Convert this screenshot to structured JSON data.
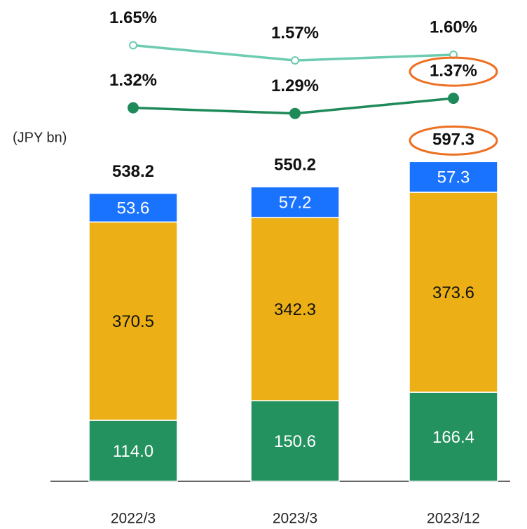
{
  "chart_data": {
    "type": "bar",
    "stacked": true,
    "unit_label": "(JPY bn)",
    "categories": [
      "2022/3",
      "2023/3",
      "2023/12"
    ],
    "ylim": [
      0,
      620
    ],
    "y2lim": [
      1.2,
      1.7
    ],
    "series": [
      {
        "type": "bar",
        "color": "#23925e",
        "values": [
          114.0,
          150.6,
          166.4
        ],
        "value_labels": [
          "114.0",
          "150.6",
          "166.4"
        ]
      },
      {
        "type": "bar",
        "color": "#ecb016",
        "values": [
          370.5,
          342.3,
          373.6
        ],
        "value_labels": [
          "370.5",
          "342.3",
          "373.6"
        ]
      },
      {
        "type": "bar",
        "color": "#1a73ff",
        "values": [
          53.6,
          57.2,
          57.3
        ],
        "value_labels": [
          "53.6",
          "57.2",
          "57.3"
        ]
      },
      {
        "type": "line",
        "axis": "y2",
        "color": "#6ccbb0",
        "marker": "hollow",
        "values": [
          1.65,
          1.57,
          1.6
        ],
        "value_labels": [
          "1.65%",
          "1.57%",
          "1.60%"
        ]
      },
      {
        "type": "line",
        "axis": "y2",
        "color": "#1e8a5a",
        "marker": "filled",
        "values": [
          1.32,
          1.29,
          1.37
        ],
        "value_labels": [
          "1.32%",
          "1.29%",
          "1.37%"
        ]
      }
    ],
    "totals": [
      538.2,
      550.2,
      597.3
    ],
    "highlight_color": "#ee7022",
    "highlight_index": 2
  }
}
